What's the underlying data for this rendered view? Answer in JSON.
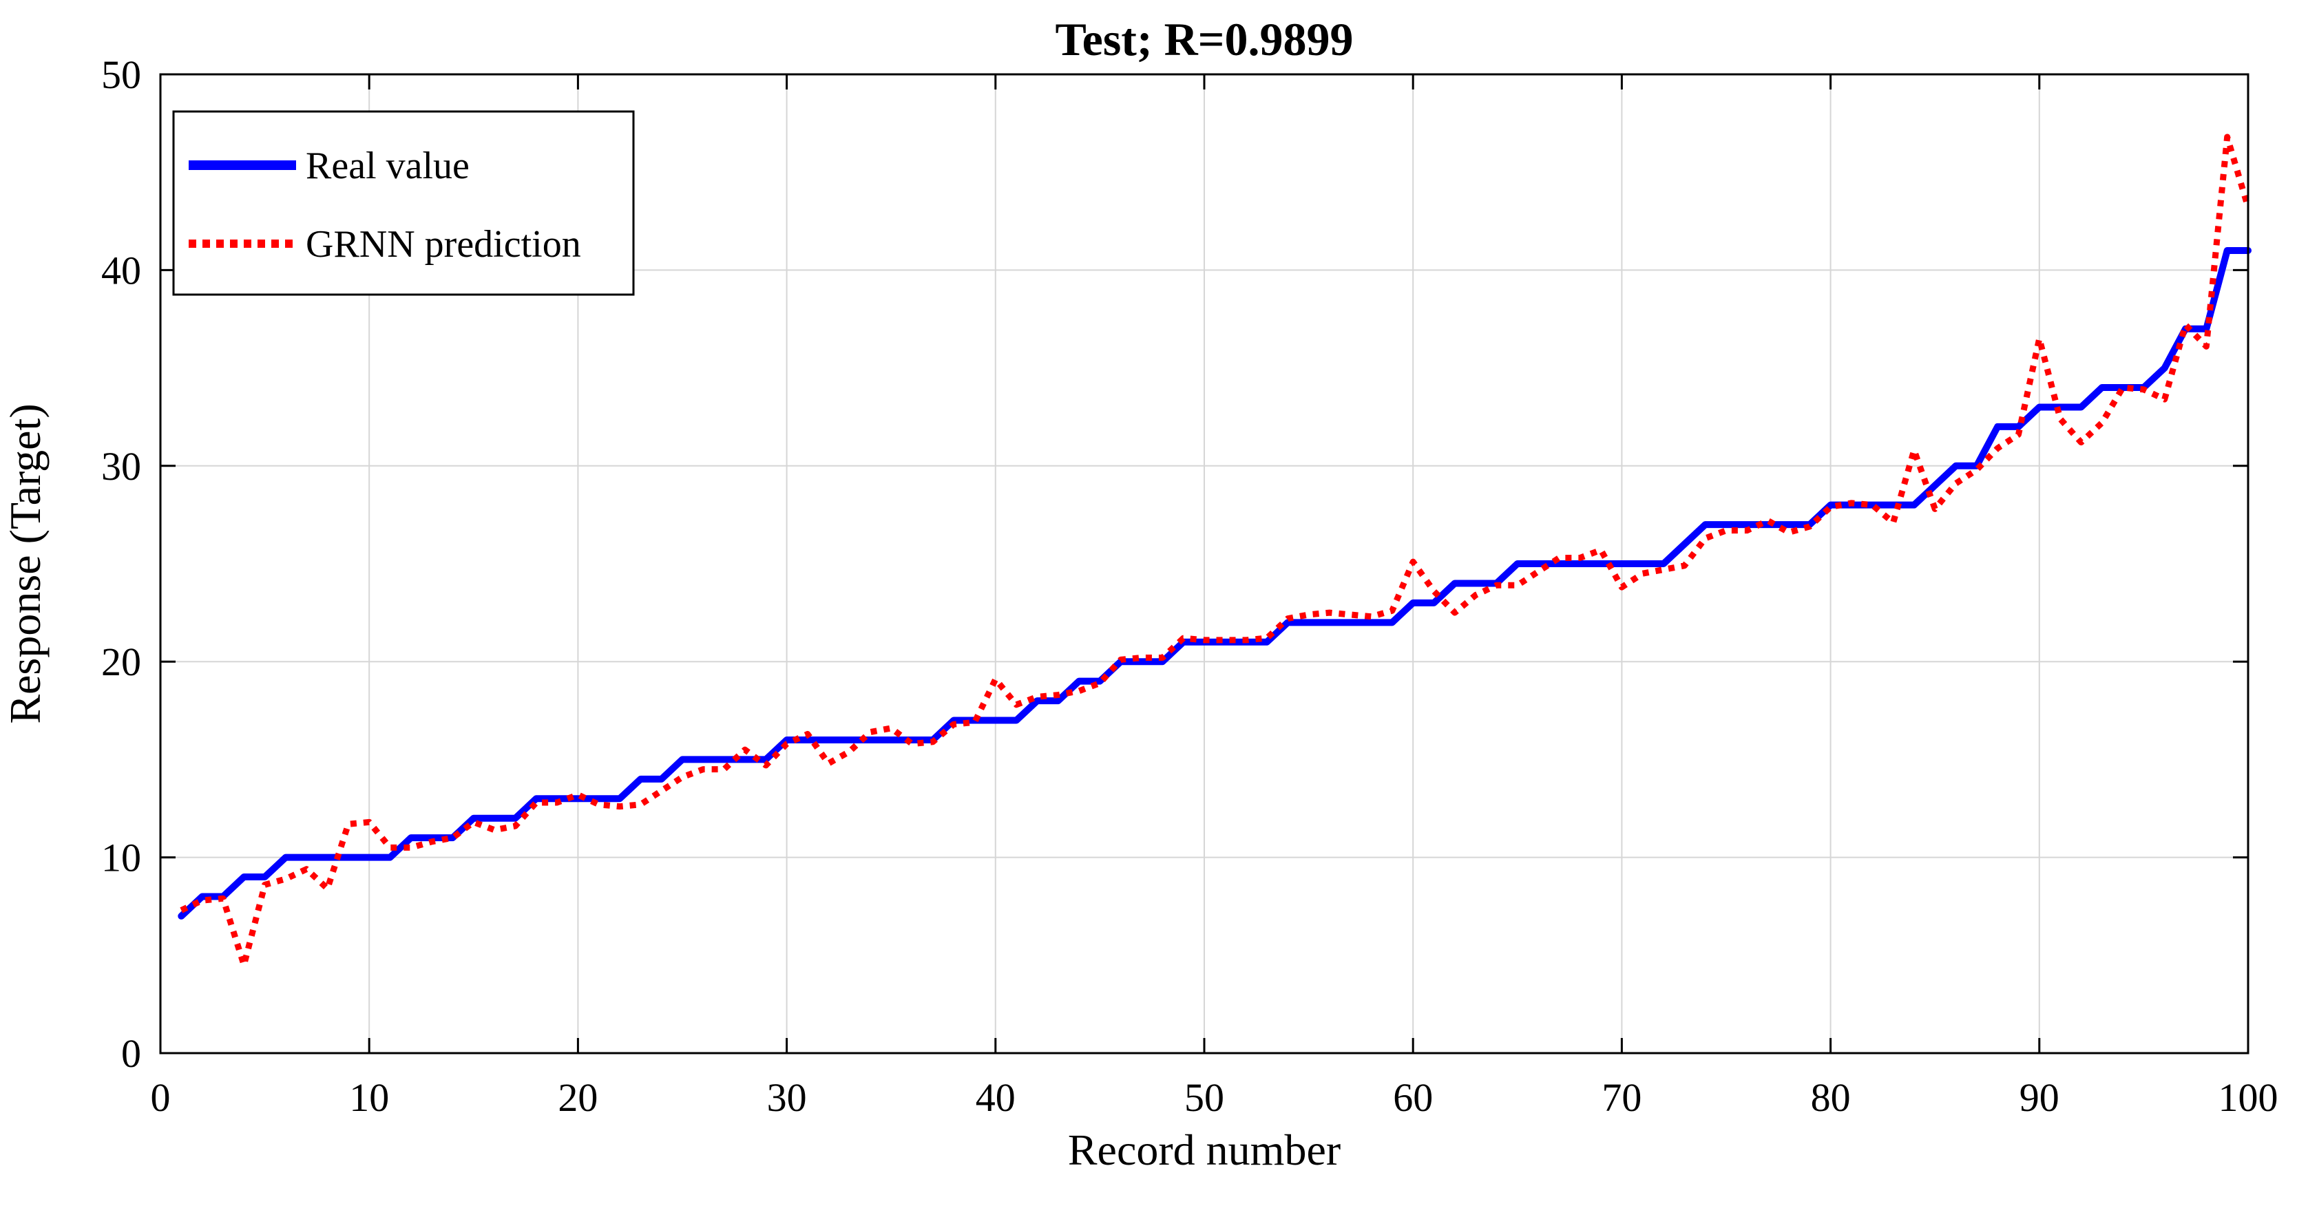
{
  "chart_data": {
    "type": "line",
    "title": "Test; R=0.9899",
    "xlabel": "Record number",
    "ylabel": "Response (Target)",
    "xlim": [
      0,
      100
    ],
    "ylim": [
      0,
      50
    ],
    "xticks": [
      0,
      10,
      20,
      30,
      40,
      50,
      60,
      70,
      80,
      90,
      100
    ],
    "yticks": [
      0,
      10,
      20,
      30,
      40,
      50
    ],
    "grid": true,
    "legend_position": "top-left",
    "x": [
      1,
      2,
      3,
      4,
      5,
      6,
      7,
      8,
      9,
      10,
      11,
      12,
      13,
      14,
      15,
      16,
      17,
      18,
      19,
      20,
      21,
      22,
      23,
      24,
      25,
      26,
      27,
      28,
      29,
      30,
      31,
      32,
      33,
      34,
      35,
      36,
      37,
      38,
      39,
      40,
      41,
      42,
      43,
      44,
      45,
      46,
      47,
      48,
      49,
      50,
      51,
      52,
      53,
      54,
      55,
      56,
      57,
      58,
      59,
      60,
      61,
      62,
      63,
      64,
      65,
      66,
      67,
      68,
      69,
      70,
      71,
      72,
      73,
      74,
      75,
      76,
      77,
      78,
      79,
      80,
      81,
      82,
      83,
      84,
      85,
      86,
      87,
      88,
      89,
      90,
      91,
      92,
      93,
      94,
      95,
      96,
      97,
      98,
      99,
      100
    ],
    "series": [
      {
        "name": "Real value",
        "color": "#0000ff",
        "style": "solid",
        "values": [
          7,
          8,
          8,
          9,
          9,
          10,
          10,
          10,
          10,
          10,
          10,
          11,
          11,
          11,
          12,
          12,
          12,
          13,
          13,
          13,
          13,
          13,
          14,
          14,
          15,
          15,
          15,
          15,
          15,
          16,
          16,
          16,
          16,
          16,
          16,
          16,
          16,
          17,
          17,
          17,
          17,
          18,
          18,
          19,
          19,
          20,
          20,
          20,
          21,
          21,
          21,
          21,
          21,
          22,
          22,
          22,
          22,
          22,
          22,
          23,
          23,
          24,
          24,
          24,
          25,
          25,
          25,
          25,
          25,
          25,
          25,
          25,
          26,
          27,
          27,
          27,
          27,
          27,
          27,
          28,
          28,
          28,
          28,
          28,
          29,
          30,
          30,
          32,
          32,
          33,
          33,
          33,
          34,
          34,
          34,
          35,
          37,
          37,
          41,
          41
        ]
      },
      {
        "name": "GRNN prediction",
        "color": "#ff0000",
        "style": "dotted",
        "values": [
          7.3,
          7.8,
          7.9,
          4.5,
          8.6,
          8.9,
          9.4,
          8.4,
          11.7,
          11.8,
          10.5,
          10.5,
          10.8,
          11.0,
          11.8,
          11.4,
          11.6,
          12.8,
          12.8,
          13.2,
          12.7,
          12.6,
          12.7,
          13.4,
          14.1,
          14.5,
          14.5,
          15.5,
          14.7,
          15.8,
          16.3,
          14.8,
          15.4,
          16.4,
          16.6,
          15.8,
          15.9,
          16.8,
          16.9,
          19.1,
          17.8,
          18.2,
          18.3,
          18.5,
          18.9,
          20.1,
          20.2,
          20.2,
          21.2,
          21.1,
          21.1,
          21.1,
          21.2,
          22.2,
          22.4,
          22.5,
          22.4,
          22.3,
          22.6,
          25.1,
          23.6,
          22.5,
          23.4,
          23.9,
          23.9,
          24.6,
          25.3,
          25.3,
          25.7,
          23.8,
          24.5,
          24.7,
          24.9,
          26.3,
          26.7,
          26.7,
          27.2,
          26.6,
          26.9,
          27.9,
          28.1,
          28.0,
          27.1,
          30.8,
          27.8,
          29.1,
          29.8,
          30.9,
          31.6,
          36.5,
          32.4,
          31.2,
          32.2,
          34.0,
          33.9,
          33.4,
          37.2,
          36.1,
          46.8,
          43.2
        ]
      }
    ]
  },
  "colors": {
    "background": "#ffffff",
    "axis": "#000000",
    "grid": "#d6d6d6",
    "legend_border": "#000000",
    "real_value": "#0000ff",
    "grnn_prediction": "#ff0000"
  }
}
